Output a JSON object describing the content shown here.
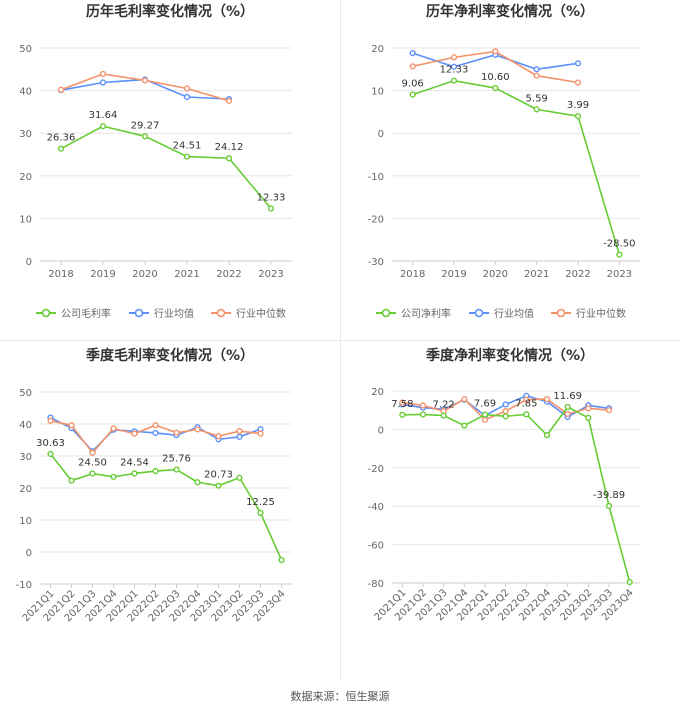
{
  "source": "数据来源：恒生聚源",
  "colors": {
    "company": "#66cc33",
    "avg": "#5b8ff9",
    "median": "#f4926a",
    "axis": "#999999",
    "grid": "#e6e6e6",
    "text": "#666666",
    "label": "#333333"
  },
  "chart_data": [
    {
      "type": "line",
      "title": "历年毛利率变化情况（%）",
      "categories": [
        "2018",
        "2019",
        "2020",
        "2021",
        "2022",
        "2023"
      ],
      "ylim": [
        0,
        50
      ],
      "yticks": [
        0,
        10,
        20,
        30,
        40,
        50
      ],
      "series": [
        {
          "name": "公司毛利率",
          "key": "company",
          "values": [
            26.36,
            31.64,
            29.27,
            24.51,
            24.12,
            12.33
          ],
          "labels": [
            "26.36",
            "31.64",
            "29.27",
            "24.51",
            "24.12",
            "12.33"
          ]
        },
        {
          "name": "行业均值",
          "key": "avg",
          "values": [
            40.1,
            41.9,
            42.6,
            38.5,
            38.0,
            null
          ]
        },
        {
          "name": "行业中位数",
          "key": "median",
          "values": [
            40.2,
            43.9,
            42.4,
            40.5,
            37.6,
            null
          ]
        }
      ],
      "legend": "bottom",
      "grid": true
    },
    {
      "type": "line",
      "title": "历年净利率变化情况（%）",
      "categories": [
        "2018",
        "2019",
        "2020",
        "2021",
        "2022",
        "2023"
      ],
      "ylim": [
        -30,
        20
      ],
      "yticks": [
        -30,
        -20,
        -10,
        0,
        10,
        20
      ],
      "series": [
        {
          "name": "公司净利率",
          "key": "company",
          "values": [
            9.06,
            12.33,
            10.6,
            5.59,
            3.99,
            -28.5
          ],
          "labels": [
            "9.06",
            "12.33",
            "10.60",
            "5.59",
            "3.99",
            "-28.50"
          ]
        },
        {
          "name": "行业均值",
          "key": "avg",
          "values": [
            18.8,
            15.6,
            18.4,
            15.0,
            16.4,
            null
          ]
        },
        {
          "name": "行业中位数",
          "key": "median",
          "values": [
            15.7,
            17.8,
            19.2,
            13.5,
            11.9,
            null
          ]
        }
      ],
      "legend": "bottom",
      "grid": true
    },
    {
      "type": "line",
      "title": "季度毛利率变化情况（%）",
      "categories": [
        "2021Q1",
        "2021Q2",
        "2021Q3",
        "2021Q4",
        "2022Q1",
        "2022Q2",
        "2022Q3",
        "2022Q4",
        "2023Q1",
        "2023Q2",
        "2023Q3",
        "2023Q4"
      ],
      "ylim": [
        -10,
        50
      ],
      "yticks": [
        -10,
        0,
        10,
        20,
        30,
        40,
        50
      ],
      "series": [
        {
          "name": "公司毛利率",
          "key": "company",
          "values": [
            30.63,
            22.3,
            24.5,
            23.5,
            24.54,
            25.3,
            25.76,
            21.8,
            20.73,
            23.2,
            12.25,
            -2.5
          ],
          "labels": [
            "30.63",
            "",
            "24.50",
            "",
            "24.54",
            "",
            "25.76",
            "",
            "20.73",
            "",
            "12.25",
            ""
          ]
        },
        {
          "name": "行业均值",
          "key": "avg",
          "values": [
            42.0,
            38.7,
            31.5,
            38.2,
            37.7,
            37.2,
            36.5,
            39.0,
            35.2,
            36.0,
            38.4,
            null
          ]
        },
        {
          "name": "行业中位数",
          "key": "median",
          "values": [
            41.0,
            39.6,
            31.0,
            38.6,
            37.0,
            39.6,
            37.3,
            38.3,
            36.2,
            37.8,
            37.0,
            null
          ]
        }
      ],
      "legend": "bottom",
      "grid": true
    },
    {
      "type": "line",
      "title": "季度净利率变化情况（%）",
      "categories": [
        "2021Q1",
        "2021Q2",
        "2021Q3",
        "2021Q4",
        "2022Q1",
        "2022Q2",
        "2022Q3",
        "2022Q4",
        "2023Q1",
        "2023Q2",
        "2023Q3",
        "2023Q4"
      ],
      "ylim": [
        -80,
        20
      ],
      "yticks": [
        -80,
        -60,
        -40,
        -20,
        0,
        20
      ],
      "series": [
        {
          "name": "公司净利率",
          "key": "company",
          "values": [
            7.58,
            7.8,
            7.22,
            2.0,
            7.69,
            6.8,
            7.85,
            -3.0,
            11.69,
            6.0,
            -39.89,
            -79.5
          ],
          "labels": [
            "7.58",
            "",
            "7.22",
            "",
            "7.69",
            "",
            "7.85",
            "",
            "11.69",
            "",
            "-39.89",
            ""
          ]
        },
        {
          "name": "行业均值",
          "key": "avg",
          "values": [
            13.0,
            11.3,
            10.5,
            15.5,
            7.2,
            13.0,
            17.5,
            14.5,
            6.5,
            12.5,
            11.0,
            null
          ]
        },
        {
          "name": "行业中位数",
          "key": "median",
          "values": [
            14.0,
            12.5,
            9.5,
            15.8,
            5.0,
            9.5,
            15.5,
            15.8,
            8.0,
            11.0,
            10.0,
            null
          ]
        }
      ],
      "legend": "bottom",
      "grid": true
    }
  ]
}
